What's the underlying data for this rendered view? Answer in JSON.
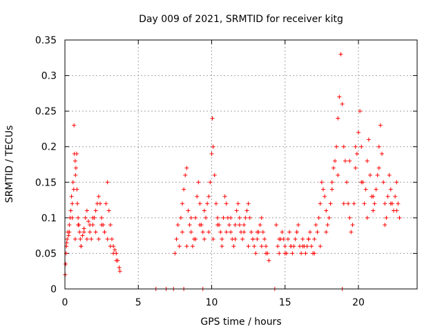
{
  "chart_data": {
    "type": "scatter",
    "title": "Day 009 of 2021, SRMTID for receiver kitg",
    "xlabel": "GPS time / hours",
    "ylabel": "SRMTID / TECUs",
    "xlim": [
      0,
      24
    ],
    "ylim": [
      0,
      0.35
    ],
    "x_ticks": [
      0,
      5,
      10,
      15,
      20
    ],
    "x_tick_labels": [
      "0",
      "5",
      "10",
      "15",
      "20"
    ],
    "y_ticks": [
      0,
      0.05,
      0.1,
      0.15,
      0.2,
      0.25,
      0.3,
      0.35
    ],
    "y_tick_labels": [
      "0",
      "0.05",
      "0.1",
      "0.15",
      "0.2",
      "0.25",
      "0.3",
      "0.35"
    ],
    "grid": true,
    "marker_color": "#ff0000",
    "grid_color": "#a0a0a0",
    "series": [
      {
        "name": "SRMTID",
        "x": [
          0.02,
          0.05,
          0.08,
          0.12,
          0.15,
          0.2,
          0.25,
          0.3,
          0.35,
          0.4,
          0.45,
          0.5,
          0.55,
          0.6,
          0.62,
          0.65,
          0.7,
          0.72,
          0.75,
          0.8,
          0.82,
          0.85,
          0.9,
          0.95,
          1.0,
          1.05,
          1.1,
          1.2,
          1.3,
          1.4,
          1.5,
          1.6,
          1.7,
          1.8,
          1.9,
          2.0,
          2.1,
          2.2,
          2.3,
          2.4,
          2.5,
          2.6,
          2.7,
          2.8,
          2.9,
          3.0,
          3.1,
          3.2,
          3.3,
          3.4,
          3.5,
          3.6,
          3.7,
          3.75,
          7.5,
          7.6,
          7.7,
          7.8,
          7.9,
          8.0,
          8.1,
          8.2,
          8.3,
          8.4,
          8.5,
          8.6,
          8.7,
          8.8,
          8.9,
          9.0,
          9.1,
          9.2,
          9.3,
          9.4,
          9.5,
          9.6,
          9.7,
          9.8,
          9.9,
          10.0,
          10.05,
          10.1,
          10.2,
          10.3,
          10.4,
          10.5,
          10.6,
          10.7,
          10.8,
          10.9,
          11.0,
          11.1,
          11.2,
          11.3,
          11.4,
          11.5,
          11.6,
          11.7,
          11.8,
          11.9,
          12.0,
          12.1,
          12.2,
          12.3,
          12.4,
          12.5,
          12.6,
          12.7,
          12.8,
          12.9,
          13.0,
          13.1,
          13.2,
          13.3,
          13.4,
          13.5,
          13.6,
          13.7,
          13.8,
          13.9,
          14.4,
          14.5,
          14.6,
          14.7,
          14.8,
          14.9,
          15.0,
          15.1,
          15.2,
          15.3,
          15.4,
          15.5,
          15.6,
          15.7,
          15.8,
          15.9,
          16.0,
          16.1,
          16.2,
          16.3,
          16.4,
          16.5,
          16.6,
          16.7,
          16.8,
          16.9,
          17.0,
          17.1,
          17.2,
          17.3,
          17.4,
          17.5,
          17.6,
          17.7,
          17.8,
          17.9,
          18.0,
          18.1,
          18.2,
          18.3,
          18.4,
          18.5,
          18.6,
          18.7,
          18.8,
          18.9,
          19.0,
          19.1,
          19.2,
          19.3,
          19.4,
          19.5,
          19.6,
          19.7,
          19.8,
          19.9,
          20.0,
          20.1,
          20.2,
          20.3,
          20.4,
          20.5,
          20.6,
          20.7,
          20.8,
          20.9,
          21.0,
          21.1,
          21.2,
          21.3,
          21.4,
          21.5,
          21.6,
          21.7,
          21.8,
          21.9,
          22.0,
          22.1,
          22.2,
          22.3,
          22.4,
          22.5,
          22.6,
          22.7,
          22.8,
          0.1,
          0.3,
          0.5,
          0.7,
          0.9,
          1.1,
          1.3,
          1.5,
          1.7,
          1.9,
          2.1,
          2.3,
          2.5,
          2.7,
          2.9,
          3.1,
          3.3,
          3.5,
          8.0,
          8.3,
          8.6,
          8.9,
          9.2,
          9.5,
          9.8,
          10.1,
          10.4,
          10.7,
          11.0,
          11.3,
          11.6,
          11.9,
          12.2,
          12.5,
          12.8,
          13.1,
          13.4,
          13.7,
          14.6,
          15.0,
          15.4,
          15.8,
          16.2,
          16.6,
          17.0,
          17.4,
          17.8,
          18.2,
          18.6,
          19.0,
          19.4,
          19.8,
          20.2,
          20.6,
          21.0,
          21.4,
          21.8,
          22.2,
          22.6,
          6.2,
          6.9,
          7.4,
          8.1,
          9.4,
          14.3,
          18.9
        ],
        "y": [
          0.02,
          0.035,
          0.05,
          0.065,
          0.07,
          0.08,
          0.075,
          0.09,
          0.1,
          0.11,
          0.13,
          0.12,
          0.15,
          0.14,
          0.23,
          0.19,
          0.18,
          0.16,
          0.17,
          0.19,
          0.14,
          0.12,
          0.1,
          0.09,
          0.08,
          0.07,
          0.06,
          0.075,
          0.085,
          0.1,
          0.11,
          0.095,
          0.08,
          0.07,
          0.09,
          0.1,
          0.11,
          0.12,
          0.13,
          0.12,
          0.1,
          0.09,
          0.08,
          0.12,
          0.15,
          0.11,
          0.09,
          0.07,
          0.06,
          0.055,
          0.05,
          0.04,
          0.03,
          0.025,
          0.05,
          0.07,
          0.09,
          0.06,
          0.1,
          0.12,
          0.14,
          0.16,
          0.17,
          0.11,
          0.09,
          0.08,
          0.06,
          0.07,
          0.1,
          0.13,
          0.15,
          0.12,
          0.09,
          0.08,
          0.07,
          0.1,
          0.12,
          0.13,
          0.15,
          0.19,
          0.24,
          0.2,
          0.16,
          0.12,
          0.1,
          0.09,
          0.08,
          0.07,
          0.1,
          0.13,
          0.12,
          0.1,
          0.09,
          0.08,
          0.07,
          0.06,
          0.09,
          0.11,
          0.12,
          0.1,
          0.08,
          0.07,
          0.09,
          0.1,
          0.11,
          0.12,
          0.1,
          0.08,
          0.07,
          0.06,
          0.05,
          0.07,
          0.08,
          0.09,
          0.1,
          0.08,
          0.07,
          0.06,
          0.05,
          0.04,
          0.09,
          0.06,
          0.05,
          0.07,
          0.08,
          0.07,
          0.06,
          0.05,
          0.07,
          0.08,
          0.06,
          0.05,
          0.06,
          0.07,
          0.08,
          0.09,
          0.06,
          0.05,
          0.07,
          0.06,
          0.05,
          0.06,
          0.07,
          0.08,
          0.06,
          0.05,
          0.07,
          0.09,
          0.08,
          0.1,
          0.12,
          0.15,
          0.14,
          0.13,
          0.11,
          0.09,
          0.1,
          0.12,
          0.15,
          0.17,
          0.18,
          0.2,
          0.24,
          0.27,
          0.33,
          0.26,
          0.2,
          0.18,
          0.15,
          0.12,
          0.1,
          0.08,
          0.09,
          0.12,
          0.17,
          0.19,
          0.22,
          0.25,
          0.2,
          0.15,
          0.12,
          0.14,
          0.18,
          0.21,
          0.16,
          0.13,
          0.11,
          0.12,
          0.14,
          0.16,
          0.2,
          0.23,
          0.19,
          0.15,
          0.12,
          0.1,
          0.13,
          0.16,
          0.14,
          0.12,
          0.11,
          0.13,
          0.15,
          0.12,
          0.1,
          0.06,
          0.08,
          0.1,
          0.07,
          0.09,
          0.06,
          0.08,
          0.07,
          0.09,
          0.1,
          0.08,
          0.07,
          0.09,
          0.08,
          0.07,
          0.06,
          0.05,
          0.04,
          0.08,
          0.06,
          0.1,
          0.07,
          0.09,
          0.11,
          0.08,
          0.07,
          0.09,
          0.06,
          0.08,
          0.1,
          0.07,
          0.09,
          0.08,
          0.06,
          0.07,
          0.08,
          0.06,
          0.05,
          0.07,
          0.05,
          0.06,
          0.08,
          0.06,
          0.07,
          0.05,
          0.06,
          0.08,
          0.14,
          0.16,
          0.12,
          0.18,
          0.2,
          0.15,
          0.1,
          0.13,
          0.17,
          0.09,
          0.12,
          0.11,
          0.0,
          0.0,
          0.0,
          0.0,
          0.0,
          0.0,
          0.0
        ]
      }
    ]
  }
}
